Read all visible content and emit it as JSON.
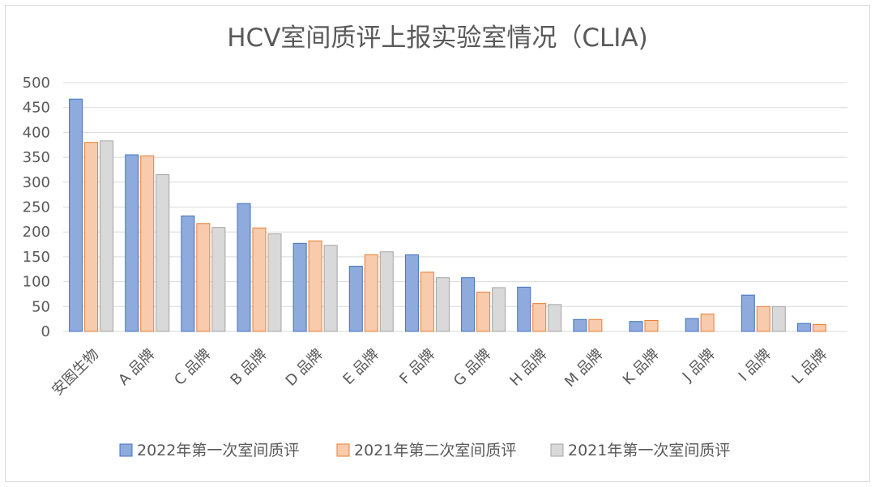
{
  "chart_data": {
    "type": "bar",
    "title": "HCV室间质评上报实验室情况（CLIA)",
    "xlabel": "",
    "ylabel": "",
    "ylim": [
      0,
      500
    ],
    "yticks": [
      0,
      50,
      100,
      150,
      200,
      250,
      300,
      350,
      400,
      450,
      500
    ],
    "grid": true,
    "legend_position": "bottom",
    "categories": [
      "安图生物",
      "A 品牌",
      "C 品牌",
      "B 品牌",
      "D 品牌",
      "E 品牌",
      "F 品牌",
      "G 品牌",
      "H 品牌",
      "M 品牌",
      "K 品牌",
      "J 品牌",
      "I 品牌",
      "L 品牌"
    ],
    "series": [
      {
        "name": "2022年第一次室间质评",
        "color": "#8faadc",
        "edge": "#4472c4",
        "values": [
          467,
          355,
          232,
          257,
          177,
          131,
          154,
          108,
          89,
          24,
          20,
          26,
          73,
          16
        ]
      },
      {
        "name": "2021年第二次室间质评",
        "color": "#f8cbad",
        "edge": "#ed7d31",
        "values": [
          380,
          353,
          217,
          208,
          182,
          154,
          119,
          79,
          56,
          24,
          22,
          35,
          50,
          14
        ]
      },
      {
        "name": "2021年第一次室间质评",
        "color": "#d9d9d9",
        "edge": "#a5a5a5",
        "values": [
          383,
          315,
          209,
          196,
          173,
          160,
          108,
          88,
          54,
          null,
          null,
          null,
          50,
          null
        ]
      }
    ]
  }
}
